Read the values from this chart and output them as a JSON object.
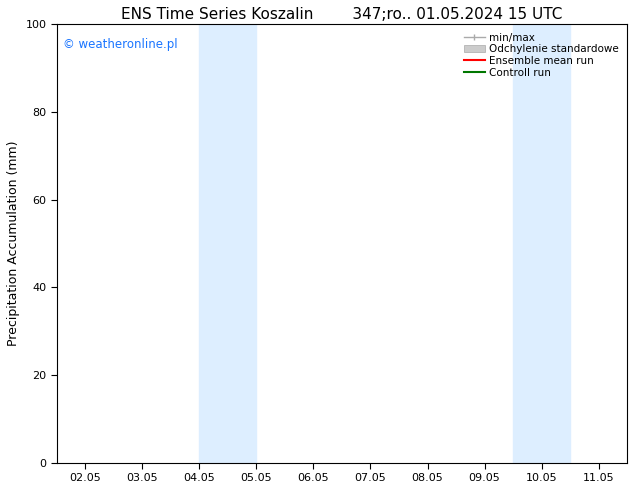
{
  "title": "ENS Time Series Koszalin        347;ro.. 01.05.2024 15 UTC",
  "ylabel": "Precipitation Accumulation (mm)",
  "ylim": [
    0,
    100
  ],
  "yticks": [
    0,
    20,
    40,
    60,
    80,
    100
  ],
  "xtick_labels": [
    "02.05",
    "03.05",
    "04.05",
    "05.05",
    "06.05",
    "07.05",
    "08.05",
    "09.05",
    "10.05",
    "11.05"
  ],
  "xtick_positions": [
    0,
    1,
    2,
    3,
    4,
    5,
    6,
    7,
    8,
    9
  ],
  "xlim": [
    -0.5,
    9.5
  ],
  "blue_bands": [
    {
      "x_start": 2.0,
      "x_end": 2.5
    },
    {
      "x_start": 2.5,
      "x_end": 3.0
    },
    {
      "x_start": 7.5,
      "x_end": 8.0
    },
    {
      "x_start": 8.0,
      "x_end": 8.5
    }
  ],
  "band_color": "#ddeeff",
  "bg_color": "#ffffff",
  "watermark_text": "© weatheronline.pl",
  "watermark_color": "#1a75ff",
  "title_fontsize": 11,
  "label_fontsize": 9,
  "tick_fontsize": 8,
  "legend_entries": [
    "min/max",
    "Odchylenie standardowe",
    "Ensemble mean run",
    "Controll run"
  ],
  "ensemble_mean_color": "#ff0000",
  "control_run_color": "#007700",
  "minmax_color": "#aaaaaa",
  "std_color": "#cccccc",
  "std_edgecolor": "#aaaaaa"
}
